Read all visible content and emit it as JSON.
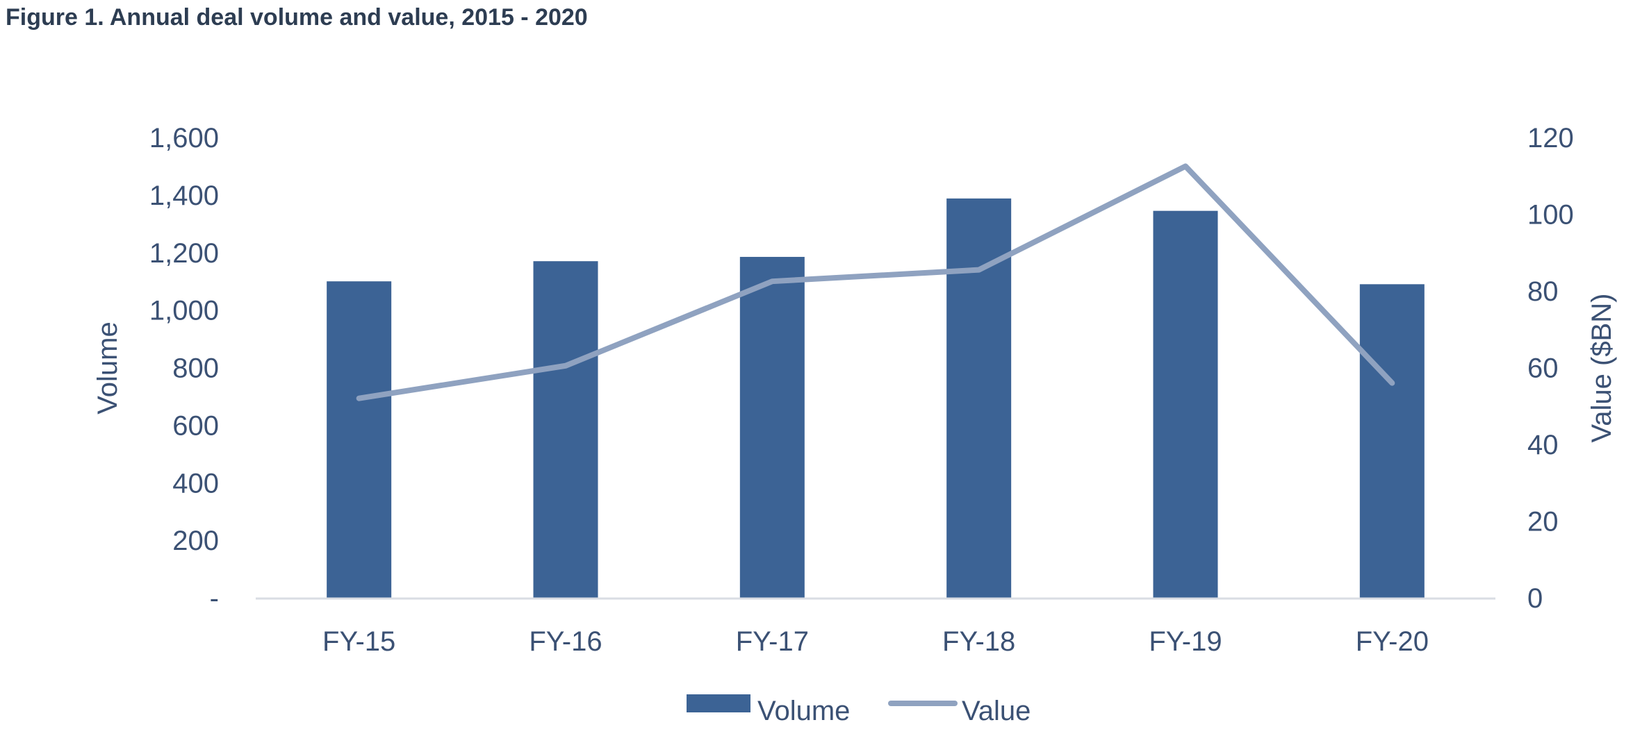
{
  "figure_title": "Figure 1. Annual deal volume and value, 2015 - 2020",
  "colors": {
    "title": "#2d3d52",
    "axis_text": "#3b5174",
    "bar": "#3c6395",
    "line": "#8fa2c0",
    "baseline": "#d9dde3"
  },
  "chart_data": {
    "type": "bar",
    "title": "",
    "categories": [
      "FY-15",
      "FY-16",
      "FY-17",
      "FY-18",
      "FY-19",
      "FY-20"
    ],
    "series": [
      {
        "name": "Volume",
        "type": "bar",
        "axis": "left",
        "values": [
          1100,
          1170,
          1185,
          1388,
          1345,
          1090
        ]
      },
      {
        "name": "Value",
        "type": "line",
        "axis": "right",
        "values": [
          52,
          60.5,
          82.5,
          85.5,
          112.5,
          56
        ]
      }
    ],
    "y_left": {
      "label": "Volume",
      "ylim": [
        0,
        1600
      ],
      "ticks": [
        0,
        200,
        400,
        600,
        800,
        1000,
        1200,
        1400,
        1600
      ],
      "tick_labels": [
        "-",
        "200",
        "400",
        "600",
        "800",
        "1,000",
        "1,200",
        "1,400",
        "1,600"
      ]
    },
    "y_right": {
      "label": "Value ($BN)",
      "ylim": [
        0,
        120
      ],
      "ticks": [
        0,
        20,
        40,
        60,
        80,
        100,
        120
      ],
      "tick_labels": [
        "0",
        "20",
        "40",
        "60",
        "80",
        "100",
        "120"
      ]
    },
    "xlabel": "",
    "grid": false,
    "legend": {
      "position": "bottom",
      "entries": [
        "Volume",
        "Value"
      ]
    }
  }
}
